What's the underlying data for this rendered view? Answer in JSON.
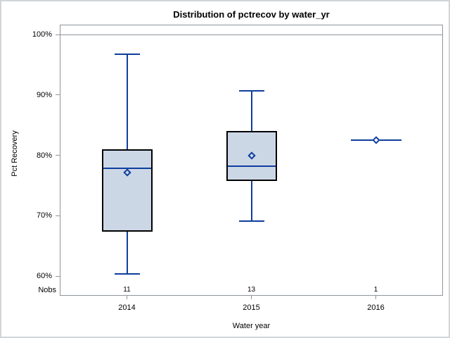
{
  "title": "Distribution of pctrecov by water_yr",
  "y_axis": {
    "label": "Pct Recovery",
    "ticks": [
      {
        "label": "100%",
        "value": 100
      },
      {
        "label": "90%",
        "value": 90
      },
      {
        "label": "80%",
        "value": 80
      },
      {
        "label": "70%",
        "value": 70
      },
      {
        "label": "60%",
        "value": 60
      }
    ]
  },
  "x_axis": {
    "label": "Water year",
    "categories": [
      "2014",
      "2015",
      "2016"
    ]
  },
  "nobs": {
    "label": "Nobs",
    "values": [
      "11",
      "13",
      "1"
    ]
  },
  "colors": {
    "box_fill": "#ccd7e6",
    "box_border": "#000000",
    "line_blue": "#0e3e9d",
    "axis_gray": "#8f959a"
  },
  "chart_data": {
    "type": "boxplot",
    "title": "Distribution of pctrecov by water_yr",
    "xlabel": "Water year",
    "ylabel": "Pct Recovery",
    "ylim": [
      60,
      100
    ],
    "ytick_format": "percent",
    "grid": false,
    "categories": [
      "2014",
      "2015",
      "2016"
    ],
    "nobs": [
      11,
      13,
      1
    ],
    "series": [
      {
        "category": "2014",
        "min": 60.4,
        "q1": 67.4,
        "median": 77.8,
        "q3": 81.0,
        "max": 96.7,
        "mean": 77.1,
        "n": 11
      },
      {
        "category": "2015",
        "min": 69.1,
        "q1": 75.7,
        "median": 78.2,
        "q3": 84.0,
        "max": 90.7,
        "mean": 80.0,
        "n": 13
      },
      {
        "category": "2016",
        "min": 82.5,
        "q1": 82.5,
        "median": 82.5,
        "q3": 82.5,
        "max": 82.5,
        "mean": 82.5,
        "n": 1
      }
    ],
    "reference_line_at": 100
  }
}
